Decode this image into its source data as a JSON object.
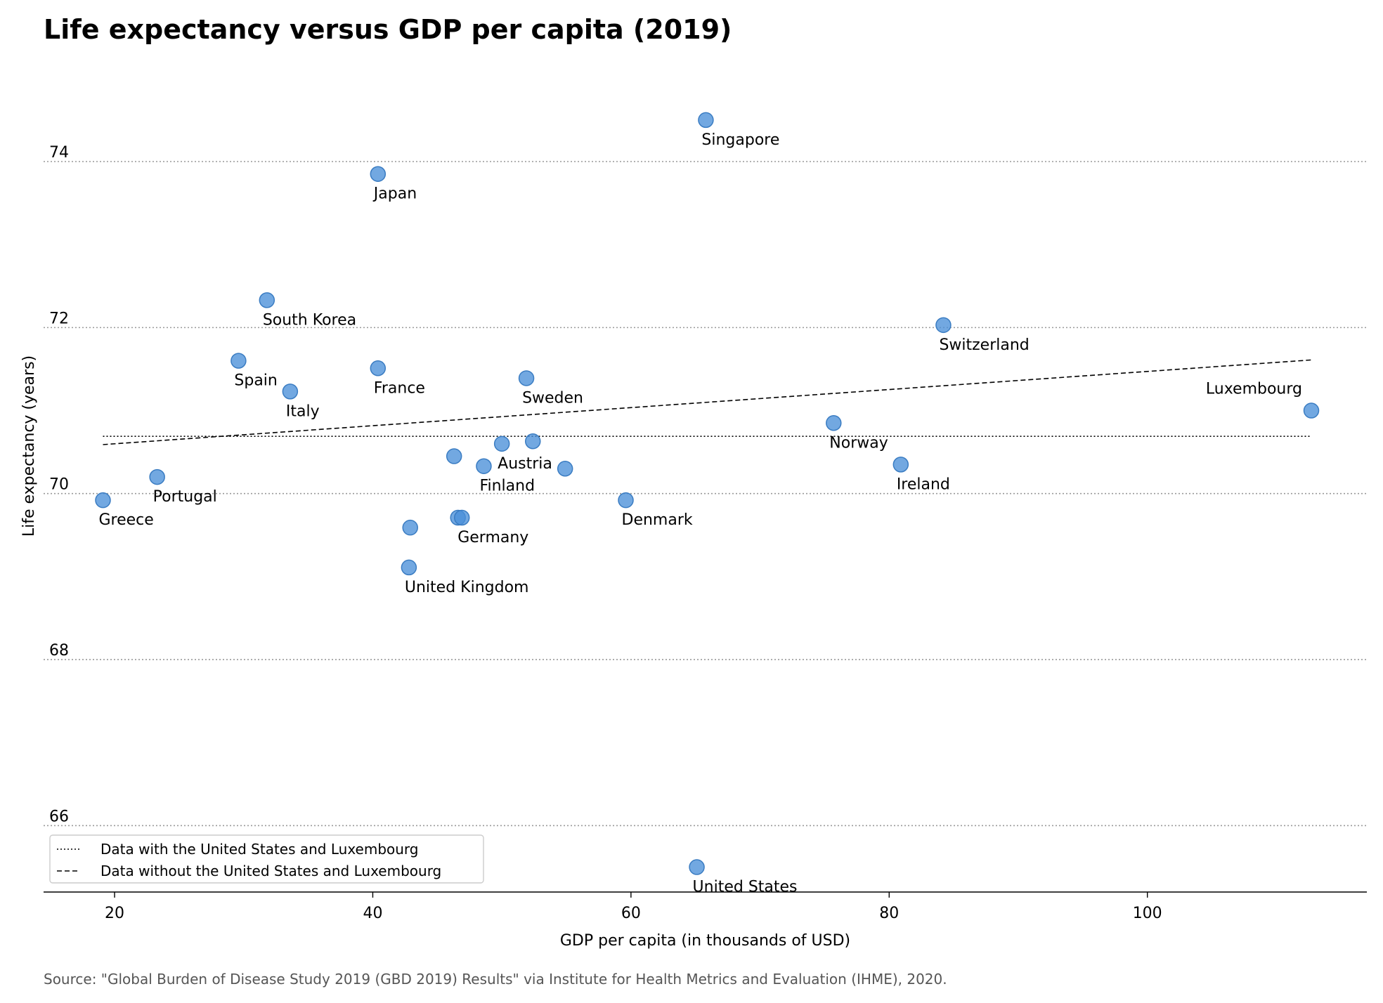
{
  "title": "Life expectancy versus GDP per capita (2019)",
  "source": "Source: \"Global Burden of Disease Study 2019 (GBD 2019) Results\" via Institute for Health Metrics and Evaluation (IHME), 2020.",
  "colors": {
    "point": "#4a90d9",
    "grid": "#999999",
    "axis": "#000000"
  },
  "chart_data": {
    "type": "scatter",
    "xlabel": "GDP per capita (in thousands of USD)",
    "ylabel": "Life expectancy (years)",
    "xlim": [
      14.5,
      117
    ],
    "ylim": [
      65.2,
      75.1
    ],
    "xticks": [
      20,
      40,
      60,
      80,
      100
    ],
    "yticks": [
      66,
      68,
      70,
      72,
      74
    ],
    "grid": "horizontal dotted",
    "legend_position": "lower-left",
    "points": [
      {
        "x": 19.1,
        "y": 69.92,
        "label": "Greece"
      },
      {
        "x": 23.3,
        "y": 70.2,
        "label": "Portugal"
      },
      {
        "x": 29.6,
        "y": 71.6,
        "label": "Spain"
      },
      {
        "x": 31.8,
        "y": 72.33,
        "label": "South Korea"
      },
      {
        "x": 33.6,
        "y": 71.23,
        "label": "Italy"
      },
      {
        "x": 40.4,
        "y": 73.85,
        "label": "Japan"
      },
      {
        "x": 40.4,
        "y": 71.51,
        "label": "France"
      },
      {
        "x": 42.8,
        "y": 69.11,
        "label": "United Kingdom"
      },
      {
        "x": 42.9,
        "y": 69.59,
        "label": ""
      },
      {
        "x": 46.3,
        "y": 70.45,
        "label": ""
      },
      {
        "x": 46.6,
        "y": 69.71,
        "label": ""
      },
      {
        "x": 46.9,
        "y": 69.71,
        "label": "Germany"
      },
      {
        "x": 48.6,
        "y": 70.33,
        "label": "Finland"
      },
      {
        "x": 50.0,
        "y": 70.6,
        "label": "Austria"
      },
      {
        "x": 51.9,
        "y": 71.39,
        "label": "Sweden"
      },
      {
        "x": 52.4,
        "y": 70.63,
        "label": ""
      },
      {
        "x": 54.9,
        "y": 70.3,
        "label": ""
      },
      {
        "x": 59.6,
        "y": 69.92,
        "label": "Denmark"
      },
      {
        "x": 65.1,
        "y": 65.5,
        "label": "United States"
      },
      {
        "x": 65.8,
        "y": 74.5,
        "label": "Singapore"
      },
      {
        "x": 75.7,
        "y": 70.85,
        "label": "Norway"
      },
      {
        "x": 80.9,
        "y": 70.35,
        "label": "Ireland"
      },
      {
        "x": 84.2,
        "y": 72.03,
        "label": "Switzerland"
      },
      {
        "x": 112.7,
        "y": 71.0,
        "label": "Luxembourg"
      }
    ],
    "series": [
      {
        "name": "Data with the United States and Luxembourg",
        "style": "dotted",
        "x": [
          19.1,
          112.7
        ],
        "y": [
          70.69,
          70.69
        ]
      },
      {
        "name": "Data without the United States and Luxembourg",
        "style": "dashed",
        "x": [
          19.1,
          112.7
        ],
        "y": [
          70.59,
          71.61
        ]
      }
    ]
  }
}
